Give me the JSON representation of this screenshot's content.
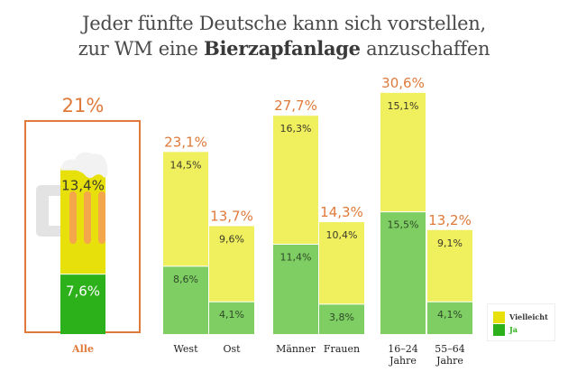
{
  "header": {
    "title_line1": "Jeder fünfte Deutsche kann sich vorstellen,",
    "title_line2_prefix": "zur WM eine ",
    "title_line2_bold": "Bierzapfanlage",
    "title_line2_suffix": " anzuschaffen"
  },
  "colors": {
    "vielleicht": "#f0ef5e",
    "ja": "#7fce64",
    "alle_vielleicht": "#e8e00a",
    "alle_ja": "#2db11b",
    "total_label": "#e07a3a",
    "frame": "#e07a3a",
    "mug_handle": "#e3e3e3",
    "foam": "#f2f2f2",
    "stripes": "#f4a64a"
  },
  "legend": {
    "items": [
      {
        "label": "Vielleicht",
        "color": "#e8e00a",
        "text_color": "#333333"
      },
      {
        "label": "Ja",
        "color": "#2db11b",
        "text_color": "#2db11b"
      }
    ]
  },
  "chart_data": {
    "type": "bar",
    "stacked": true,
    "title": "Jeder fünfte Deutsche kann sich vorstellen, zur WM eine Bierzapfanlage anzuschaffen",
    "xlabel": "",
    "ylabel": "",
    "unit": "%",
    "categories": [
      "Alle",
      "West",
      "Ost",
      "Männer",
      "Frauen",
      "16–24 Jahre",
      "55–64 Jahre"
    ],
    "category_labels": [
      [
        "Alle"
      ],
      [
        "West"
      ],
      [
        "Ost"
      ],
      [
        "Männer"
      ],
      [
        "Frauen"
      ],
      [
        "16–24",
        "Jahre"
      ],
      [
        "55–64",
        "Jahre"
      ]
    ],
    "series": [
      {
        "name": "Ja",
        "values": [
          7.6,
          8.6,
          4.1,
          11.4,
          3.8,
          15.5,
          4.1
        ],
        "labels": [
          "7,6%",
          "8,6%",
          "4,1%",
          "11,4%",
          "3,8%",
          "15,5%",
          "4,1%"
        ]
      },
      {
        "name": "Vielleicht",
        "values": [
          13.4,
          14.5,
          9.6,
          16.3,
          10.4,
          15.1,
          9.1
        ],
        "labels": [
          "13,4%",
          "14,5%",
          "9,6%",
          "16,3%",
          "10,4%",
          "15,1%",
          "9,1%"
        ]
      }
    ],
    "totals": [
      21,
      23.1,
      13.7,
      27.7,
      14.3,
      30.6,
      13.2
    ],
    "total_labels": [
      "21%",
      "23,1%",
      "13,7%",
      "27,7%",
      "14,3%",
      "30,6%",
      "13,2%"
    ],
    "groups": [
      [
        "Alle"
      ],
      [
        "West",
        "Ost"
      ],
      [
        "Männer",
        "Frauen"
      ],
      [
        "16–24 Jahre",
        "55–64 Jahre"
      ]
    ],
    "ylim": [
      0,
      32
    ],
    "grid": false,
    "legend_position": "bottom-right"
  }
}
